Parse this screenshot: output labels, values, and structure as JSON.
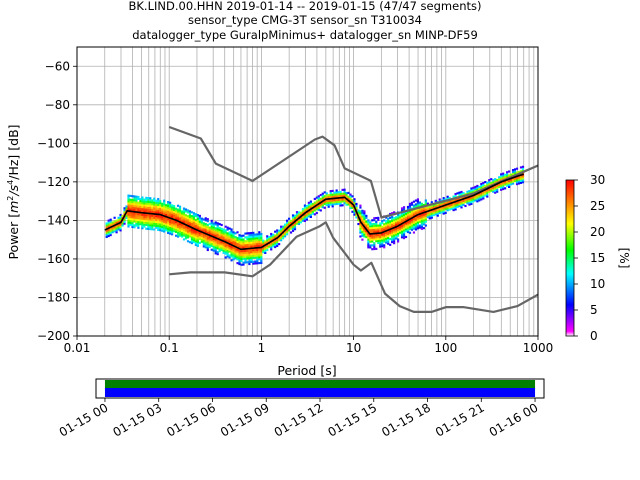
{
  "title_lines": [
    "BK.LIND.00.HHN   2019-01-14 -- 2019-01-15  (47/47 segments)",
    "sensor_type CMG-3T sensor_sn T310034",
    "datalogger_type GuralpMinimus+ datalogger_sn MINP-DF59"
  ],
  "chart_data": [
    {
      "type": "heatmap",
      "xlabel": "Period [s]",
      "ylabel": "Power [m²/s⁴/Hz] [dB]",
      "ylabel_parts": {
        "base": "Power [",
        "m": "m",
        "sup2": "2",
        "s": "/s",
        "sup4": "4",
        "rest": "/Hz] [dB]"
      },
      "x_scale": "log",
      "xlim": [
        0.01,
        1000
      ],
      "ylim": [
        -200,
        -50
      ],
      "x_ticks": [
        0.01,
        0.1,
        1,
        10,
        100,
        1000
      ],
      "x_tick_labels": [
        "0.01",
        "0.1",
        "1",
        "10",
        "100",
        "1000"
      ],
      "y_ticks": [
        -200,
        -180,
        -160,
        -140,
        -120,
        -100,
        -80,
        -60
      ],
      "y_tick_labels": [
        "−200",
        "−180",
        "−160",
        "−140",
        "−120",
        "−100",
        "−80",
        "−60"
      ],
      "grid": true,
      "colorbar": {
        "label": "[%]",
        "range": [
          0,
          30
        ],
        "ticks": [
          0,
          5,
          10,
          15,
          20,
          25,
          30
        ],
        "tick_labels": [
          "0",
          "5",
          "10",
          "15",
          "20",
          "25",
          "30"
        ],
        "colors": [
          "#ffffff",
          "#ff00ff",
          "#0000ff",
          "#00ffff",
          "#00ff00",
          "#ffff00",
          "#ff8000",
          "#ff0000"
        ]
      },
      "series": [
        {
          "name": "",
          "color": "#666666",
          "points": [
            [
              0.1,
              -91.5
            ],
            [
              0.22,
              -97.5
            ],
            [
              0.32,
              -110.5
            ],
            [
              0.8,
              -119.5
            ],
            [
              3.8,
              -98
            ],
            [
              4.6,
              -96.5
            ],
            [
              6.2,
              -101
            ],
            [
              8,
              -113
            ],
            [
              15.4,
              -119.5
            ],
            [
              20,
              -138.5
            ],
            [
              200,
              -126
            ],
            [
              1000,
              -111.5
            ]
          ]
        },
        {
          "name": "",
          "color": "#666666",
          "points": [
            [
              0.1,
              -168
            ],
            [
              0.17,
              -167
            ],
            [
              0.4,
              -167
            ],
            [
              0.8,
              -169
            ],
            [
              1.24,
              -163
            ],
            [
              2.4,
              -148.5
            ],
            [
              4.3,
              -143
            ],
            [
              5,
              -141
            ],
            [
              6,
              -149
            ],
            [
              10,
              -163
            ],
            [
              12,
              -166
            ],
            [
              15.6,
              -162
            ],
            [
              21.9,
              -178
            ],
            [
              31.6,
              -184.5
            ],
            [
              45,
              -187.5
            ],
            [
              70,
              -187.5
            ],
            [
              101,
              -185
            ],
            [
              154,
              -185
            ],
            [
              328,
              -187.5
            ],
            [
              600,
              -184.5
            ],
            [
              1000,
              -178.5
            ]
          ]
        },
        {
          "name": "",
          "color": "#000000",
          "points": [
            [
              0.02,
              -145
            ],
            [
              0.03,
              -141
            ],
            [
              0.035,
              -135
            ],
            [
              0.05,
              -136
            ],
            [
              0.08,
              -137
            ],
            [
              0.12,
              -140
            ],
            [
              0.2,
              -145
            ],
            [
              0.4,
              -151
            ],
            [
              0.6,
              -155
            ],
            [
              1,
              -154
            ],
            [
              1.5,
              -149
            ],
            [
              2,
              -143
            ],
            [
              3,
              -136
            ],
            [
              5,
              -129
            ],
            [
              8,
              -128
            ],
            [
              10,
              -132
            ],
            [
              12,
              -141
            ],
            [
              15,
              -147
            ],
            [
              20,
              -146.5
            ],
            [
              30,
              -143
            ],
            [
              50,
              -137
            ],
            [
              100,
              -132
            ],
            [
              200,
              -127
            ],
            [
              400,
              -120
            ],
            [
              600,
              -117
            ],
            [
              700,
              -116
            ]
          ]
        }
      ]
    },
    {
      "type": "bar",
      "x_tick_labels": [
        "01-15 00",
        "01-15 03",
        "01-15 06",
        "01-15 09",
        "01-15 12",
        "01-15 15",
        "01-15 18",
        "01-15 21",
        "01-16 00"
      ],
      "xlim_hours": [
        -0.5,
        24.5
      ],
      "bands": [
        {
          "color": "#008000",
          "start_hour": 0,
          "end_hour": 24
        },
        {
          "color": "#0000ff",
          "start_hour": 0,
          "end_hour": 24
        }
      ]
    }
  ]
}
